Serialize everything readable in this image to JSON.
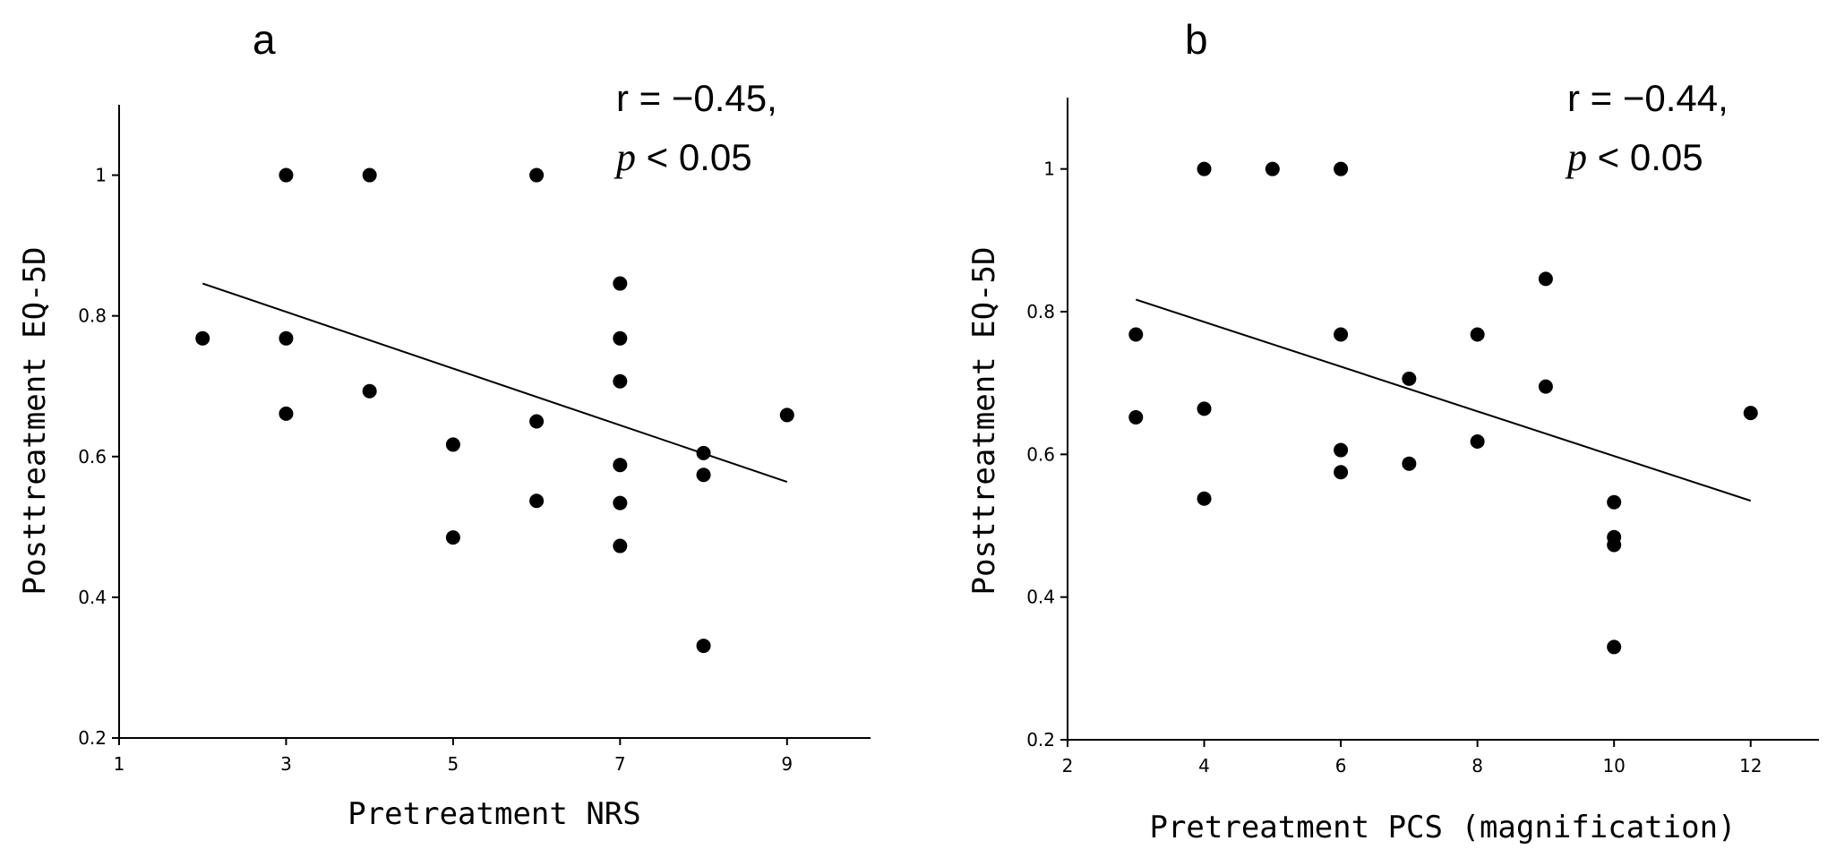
{
  "chart_data": [
    {
      "type": "scatter",
      "panel": "a",
      "title": "",
      "xlabel": "Pretreatment NRS",
      "ylabel": "Posttreatment EQ-5D",
      "xlim": [
        1,
        10
      ],
      "ylim": [
        0.2,
        1.1
      ],
      "xticks": [
        1,
        3,
        5,
        7,
        9
      ],
      "yticks": [
        0.2,
        0.4,
        0.6,
        0.8,
        1
      ],
      "xtick_labels": [
        "1",
        "3",
        "5",
        "7",
        "9"
      ],
      "ytick_labels": [
        "0.2",
        "0.4",
        "0.6",
        "0.8",
        "1"
      ],
      "annotation": {
        "r_text": "r = −0.45,",
        "p_symbol": "p",
        "p_text": " < 0.05"
      },
      "regression": {
        "x": [
          2,
          9
        ],
        "y": [
          0.846,
          0.564
        ]
      },
      "points": [
        {
          "x": 2,
          "y": 0.768
        },
        {
          "x": 3,
          "y": 1.0
        },
        {
          "x": 3,
          "y": 0.768
        },
        {
          "x": 3,
          "y": 0.661
        },
        {
          "x": 4,
          "y": 1.0
        },
        {
          "x": 4,
          "y": 0.693
        },
        {
          "x": 5,
          "y": 0.617
        },
        {
          "x": 5,
          "y": 0.485
        },
        {
          "x": 6,
          "y": 1.0
        },
        {
          "x": 6,
          "y": 0.65
        },
        {
          "x": 6,
          "y": 0.537
        },
        {
          "x": 7,
          "y": 0.846
        },
        {
          "x": 7,
          "y": 0.768
        },
        {
          "x": 7,
          "y": 0.707
        },
        {
          "x": 7,
          "y": 0.588
        },
        {
          "x": 7,
          "y": 0.534
        },
        {
          "x": 7,
          "y": 0.473
        },
        {
          "x": 8,
          "y": 0.605
        },
        {
          "x": 8,
          "y": 0.574
        },
        {
          "x": 8,
          "y": 0.331
        },
        {
          "x": 9,
          "y": 0.659
        }
      ]
    },
    {
      "type": "scatter",
      "panel": "b",
      "title": "",
      "xlabel": "Pretreatment PCS (magnification)",
      "ylabel": "Posttreatment EQ-5D",
      "xlim": [
        2,
        13
      ],
      "ylim": [
        0.2,
        1.1
      ],
      "xticks": [
        2,
        4,
        6,
        8,
        10,
        12
      ],
      "yticks": [
        0.2,
        0.4,
        0.6,
        0.8,
        1
      ],
      "xtick_labels": [
        "2",
        "4",
        "6",
        "8",
        "10",
        "12"
      ],
      "ytick_labels": [
        "0.2",
        "0.4",
        "0.6",
        "0.8",
        "1"
      ],
      "annotation": {
        "r_text": "r = −0.44,",
        "p_symbol": "p",
        "p_text": " < 0.05"
      },
      "regression": {
        "x": [
          3,
          12
        ],
        "y": [
          0.817,
          0.535
        ]
      },
      "points": [
        {
          "x": 3,
          "y": 0.768
        },
        {
          "x": 3,
          "y": 0.652
        },
        {
          "x": 4,
          "y": 1.0
        },
        {
          "x": 4,
          "y": 0.664
        },
        {
          "x": 4,
          "y": 0.538
        },
        {
          "x": 5,
          "y": 1.0
        },
        {
          "x": 6,
          "y": 1.0
        },
        {
          "x": 6,
          "y": 0.768
        },
        {
          "x": 6,
          "y": 0.606
        },
        {
          "x": 6,
          "y": 0.575
        },
        {
          "x": 7,
          "y": 0.706
        },
        {
          "x": 7,
          "y": 0.587
        },
        {
          "x": 8,
          "y": 0.768
        },
        {
          "x": 8,
          "y": 0.618
        },
        {
          "x": 9,
          "y": 0.846
        },
        {
          "x": 9,
          "y": 0.695
        },
        {
          "x": 10,
          "y": 0.533
        },
        {
          "x": 10,
          "y": 0.484
        },
        {
          "x": 10,
          "y": 0.473
        },
        {
          "x": 10,
          "y": 0.33
        },
        {
          "x": 12,
          "y": 0.658
        }
      ]
    }
  ]
}
